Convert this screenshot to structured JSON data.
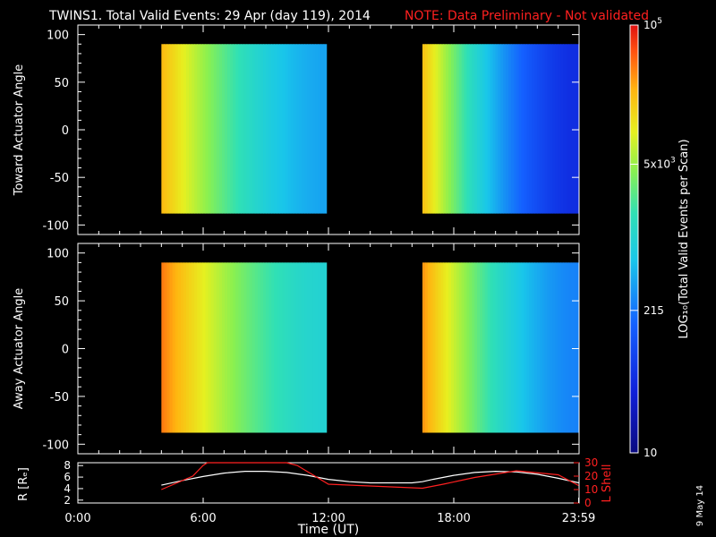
{
  "title": "TWINS1. Total Valid Events: 29 Apr (day 119), 2014",
  "note": "NOTE: Data Preliminary - Not validated",
  "date_stamp": "9 May 14",
  "chart_data": [
    {
      "type": "heatmap",
      "ylabel": "Toward Actuator Angle",
      "ylim": [
        -110,
        110
      ],
      "yticks": [
        100,
        50,
        0,
        -50,
        -100
      ],
      "xlim": [
        0,
        24
      ],
      "segments": [
        {
          "t_start": 4.0,
          "t_end": 11.9,
          "angle_min": -88,
          "angle_max": 90,
          "log_start": 4.35,
          "log_end": 2.6
        },
        {
          "t_start": 16.5,
          "t_end": 23.98,
          "angle_min": -88,
          "angle_max": 90,
          "log_start": 4.3,
          "log_end": 1.7
        }
      ]
    },
    {
      "type": "heatmap",
      "ylabel": "Away Actuator Angle",
      "ylim": [
        -110,
        110
      ],
      "yticks": [
        100,
        50,
        0,
        -50,
        -100
      ],
      "xlim": [
        0,
        24
      ],
      "segments": [
        {
          "t_start": 4.0,
          "t_end": 11.9,
          "angle_min": -88,
          "angle_max": 90,
          "log_start": 4.6,
          "log_end": 3.0
        },
        {
          "t_start": 16.5,
          "t_end": 23.98,
          "angle_min": -88,
          "angle_max": 90,
          "log_start": 4.5,
          "log_end": 2.4
        }
      ]
    },
    {
      "type": "line",
      "xlabel": "Time (UT)",
      "xticks": [
        "0:00",
        "6:00",
        "12:00",
        "18:00",
        "23:59"
      ],
      "xtick_hours": [
        0,
        6,
        12,
        18,
        23.98
      ],
      "xlim": [
        0,
        24
      ],
      "ylabel_left": "R [Rₑ]",
      "ylim_left": [
        1.5,
        8.5
      ],
      "yticks_left": [
        2,
        4,
        6,
        8
      ],
      "ylabel_right": "L Shell",
      "ylim_right": [
        0,
        30
      ],
      "yticks_right": [
        0,
        10,
        20,
        30
      ],
      "series": [
        {
          "color": "#ffffff",
          "axis": "left",
          "x": [
            4.0,
            5.0,
            6.0,
            7.0,
            8.0,
            9.0,
            10.0,
            11.0,
            12.0,
            13.0,
            14.0,
            15.0,
            16.0,
            16.5,
            17.0,
            18.0,
            19.0,
            20.0,
            21.0,
            22.0,
            23.0,
            24.0
          ],
          "y": [
            4.6,
            5.4,
            6.1,
            6.7,
            7.0,
            7.0,
            6.8,
            6.3,
            5.6,
            5.2,
            5.0,
            5.0,
            5.0,
            5.2,
            5.6,
            6.3,
            6.8,
            7.0,
            6.9,
            6.5,
            5.8,
            5.0
          ]
        },
        {
          "color": "#ff2020",
          "axis": "right",
          "x": [
            4.0,
            5.5,
            6.0,
            6.2,
            10.0,
            10.5,
            12.0,
            16.5,
            17.5,
            19.0,
            21.0,
            23.0,
            23.98
          ],
          "y": [
            10,
            20,
            28,
            30,
            30,
            28,
            14,
            11,
            14,
            19,
            24,
            21,
            13
          ]
        }
      ]
    }
  ],
  "colorbar": {
    "label": "LOG₁₀(Total Valid Events per Scan)",
    "log_min": 1.0,
    "log_max": 5.0,
    "ticks": [
      {
        "log": 5.0,
        "base": "10",
        "exp": "5"
      },
      {
        "log": 3.699,
        "base": "5x10",
        "exp": "3"
      },
      {
        "log": 2.332,
        "base": "215",
        "exp": ""
      },
      {
        "log": 1.0,
        "base": "10",
        "exp": ""
      }
    ]
  }
}
